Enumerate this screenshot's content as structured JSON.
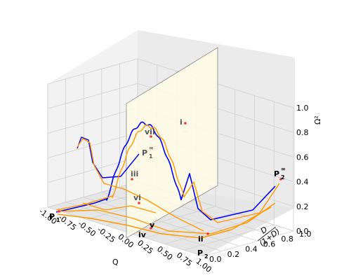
{
  "chart_data": {
    "type": "line",
    "title": "",
    "axes": {
      "x": {
        "label": "Q",
        "range": [
          -1.0,
          1.0
        ],
        "ticks": [
          "-1.00",
          "-0.75",
          "-0.50",
          "-0.25",
          "0.00",
          "0.25",
          "0.50",
          "0.75",
          "1.00"
        ]
      },
      "y": {
        "label_num": "D",
        "label_den": "(1+D)",
        "range": [
          0.0,
          1.0
        ],
        "ticks": [
          "0.0",
          "0.2",
          "0.4",
          "0.6",
          "0.8",
          "1.0"
        ]
      },
      "z": {
        "label": "Ω²",
        "range": [
          0.0,
          1.0
        ],
        "ticks": [
          "0.0",
          "0.2",
          "0.4",
          "0.6",
          "0.8",
          "1.0"
        ]
      }
    },
    "grid": true,
    "series_colors": {
      "trajectory_a": "#0000ee",
      "trajectory_b": "#ff9900",
      "marker": "#ff3333",
      "plane": "#fffbe6"
    },
    "points": [
      {
        "label": "P",
        "sub": "1",
        "sup": ""
      },
      {
        "label": "P",
        "sub": "2",
        "sup": ""
      },
      {
        "label": "P",
        "sub": "1",
        "sup": "∞"
      },
      {
        "label": "P",
        "sub": "2",
        "sup": "∞"
      }
    ],
    "annotations": [
      "i",
      "ii",
      "iii",
      "iv",
      "v",
      "vi",
      "vii"
    ]
  }
}
